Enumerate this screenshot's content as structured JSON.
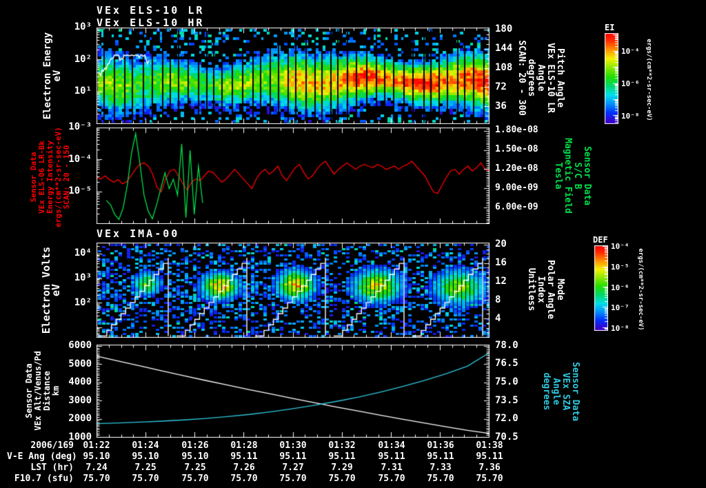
{
  "header": {
    "title_lr": "VEx ELS-10 LR",
    "title_hr": "VEx ELS-10 HR"
  },
  "colors": {
    "background": "#000000",
    "foreground": "#ffffff",
    "accent_red": "#ff0000",
    "accent_green": "#00e04a",
    "accent_cyan": "#2fc9de"
  },
  "panels": {
    "p1": {
      "left_label_lines": [
        "Electron Energy",
        "eV"
      ],
      "left_ticks": [
        {
          "label": "10³",
          "exp": 3
        },
        {
          "label": "10²",
          "exp": 2
        },
        {
          "label": "10¹",
          "exp": 1
        }
      ],
      "right_ticks": [
        {
          "label": "180",
          "value": 180
        },
        {
          "label": "144",
          "value": 144
        },
        {
          "label": "108",
          "value": 108
        },
        {
          "label": "72",
          "value": 72
        },
        {
          "label": "36",
          "value": 36
        }
      ],
      "right_label_lines": [
        "Pitch Angle",
        "VEx ELS-10 LR",
        "Angle",
        "degrees",
        "SCAN: 20 - 300"
      ],
      "colorbar": {
        "title": "EI",
        "units": "ergs/(cm**2-sr-sec-eV)",
        "ticks": [
          {
            "label": "10⁻⁴",
            "exp": -4
          },
          {
            "label": "10⁻⁶",
            "exp": -6
          },
          {
            "label": "10⁻⁸",
            "exp": -8
          }
        ],
        "scale_log10_top": -2.9,
        "scale_log10_bottom": -8.5
      }
    },
    "p2": {
      "left_label_lines": [
        "Sensor Data",
        "VEx ELS-06 LR-Bk",
        "Energy Intensity",
        "ergs/(cm**2-sr-sec-eV)",
        "SCAN: 20 - 150"
      ],
      "left_ticks": [
        {
          "label": "10⁻³",
          "exp": -3
        },
        {
          "label": "10⁻⁴",
          "exp": -4
        },
        {
          "label": "10⁻⁵",
          "exp": -5
        }
      ],
      "right_ticks": [
        {
          "label": "1.80e-08",
          "value": 18
        },
        {
          "label": "1.50e-08",
          "value": 15
        },
        {
          "label": "1.20e-08",
          "value": 12
        },
        {
          "label": "9.00e-09",
          "value": 9
        },
        {
          "label": "6.00e-09",
          "value": 6
        }
      ],
      "right_label_lines": [
        "Sensor Data",
        "S/C B",
        "Magnetic Field",
        "Tesla"
      ]
    },
    "p3": {
      "title": "VEx IMA-00",
      "left_label_lines": [
        "Electron Volts",
        "eV"
      ],
      "left_ticks": [
        {
          "label": "10⁴",
          "exp": 4
        },
        {
          "label": "10³",
          "exp": 3
        },
        {
          "label": "10²",
          "exp": 2
        }
      ],
      "right_ticks": [
        {
          "label": "20",
          "value": 20
        },
        {
          "label": "16",
          "value": 16
        },
        {
          "label": "12",
          "value": 12
        },
        {
          "label": "8",
          "value": 8
        },
        {
          "label": "4",
          "value": 4
        }
      ],
      "right_label_lines": [
        "Mode",
        "Polar Angle",
        "Index",
        "Unitless"
      ],
      "colorbar": {
        "title": "DEF",
        "units": "ergs/(cm**2-sr-sec-eV)",
        "ticks": [
          {
            "label": "10⁻⁴",
            "exp": -4
          },
          {
            "label": "10⁻⁵",
            "exp": -5
          },
          {
            "label": "10⁻⁶",
            "exp": -6
          },
          {
            "label": "10⁻⁷",
            "exp": -7
          },
          {
            "label": "10⁻⁸",
            "exp": -8
          }
        ],
        "scale_log10_top": -3.95,
        "scale_log10_bottom": -8.15
      }
    },
    "p4": {
      "left_label_lines": [
        "Sensor Data",
        "VEx Alt/Venus/Pd",
        "Distance",
        "km"
      ],
      "left_ticks": [
        {
          "label": "6000",
          "value": 6000
        },
        {
          "label": "5000",
          "value": 5000
        },
        {
          "label": "4000",
          "value": 4000
        },
        {
          "label": "3000",
          "value": 3000
        },
        {
          "label": "2000",
          "value": 2000
        },
        {
          "label": "1000",
          "value": 1000
        }
      ],
      "right_ticks": [
        {
          "label": "78.0",
          "value": 78
        },
        {
          "label": "76.5",
          "value": 76.5
        },
        {
          "label": "75.0",
          "value": 75
        },
        {
          "label": "73.5",
          "value": 73.5
        },
        {
          "label": "72.0",
          "value": 72
        },
        {
          "label": "70.5",
          "value": 70.5
        }
      ],
      "right_label_lines": [
        "Sensor Data",
        "VEx SZA",
        "Angle",
        "degrees"
      ]
    }
  },
  "bottom_axis": {
    "date_label": "2006/169",
    "row_labels": [
      "V-E Ang (deg)",
      "LST (hr)",
      "F10.7 (sfu)"
    ],
    "times": [
      "01:22",
      "01:24",
      "01:26",
      "01:28",
      "01:30",
      "01:32",
      "01:34",
      "01:36",
      "01:38"
    ],
    "rows": [
      [
        "95.10",
        "95.10",
        "95.10",
        "95.11",
        "95.11",
        "95.11",
        "95.11",
        "95.11",
        "95.11"
      ],
      [
        "7.24",
        "7.25",
        "7.25",
        "7.26",
        "7.27",
        "7.29",
        "7.31",
        "7.33",
        "7.36"
      ],
      [
        "75.70",
        "75.70",
        "75.70",
        "75.70",
        "75.70",
        "75.70",
        "75.70",
        "75.70",
        "75.70"
      ]
    ]
  },
  "chart_data": [
    {
      "type": "heatmap",
      "name": "els_electron_spectrogram",
      "title": "VEx ELS-10 LR / VEx ELS-10 HR",
      "xlabel": "UT 01:22 - 01:38 (2006/169)",
      "ylabel": "Electron Energy eV",
      "y_left_log10_lim": [
        0,
        3
      ],
      "y_right_label": "Pitch Angle degrees SCAN: 20 - 300",
      "y_right_lim": [
        4,
        184
      ],
      "zlabel": "EI ergs/(cm**2-sr-sec-eV)",
      "z_log10_lim": [
        -8.5,
        -2.9
      ],
      "render": {
        "seed": 7,
        "cell": [
          5,
          4
        ],
        "band_center": 0.55,
        "band_width": 0.155,
        "base_intensity": 0.56,
        "right_boost": 0.34,
        "boost_start": 0.5,
        "gap_min": 10,
        "gap_var": 6,
        "speck_prob": 0.2,
        "trace": {
          "x0": 4,
          "x1": 76,
          "y_mid": 66,
          "amp": 26
        }
      }
    },
    {
      "type": "line",
      "name": "els_intensity_and_magnetic_field",
      "y_left": {
        "label": "Energy Intensity ergs/(cm**2-sr-sec-eV)",
        "scale": "log",
        "lim_log10": [
          -6,
          -3
        ]
      },
      "y_right": {
        "label": "S/C B Magnetic Field Tesla",
        "lim_e9": [
          3.5,
          18.55
        ]
      },
      "series": [
        {
          "name": "VEx ELS-06 LR-Bk Energy Intensity",
          "color": "#ff0000",
          "axis": "left",
          "x_start": 0,
          "x_end": 1,
          "log10_values": [
            -4.55,
            -4.6,
            -4.5,
            -4.62,
            -4.7,
            -4.62,
            -4.75,
            -4.68,
            -4.5,
            -4.3,
            -4.15,
            -4.1,
            -4.2,
            -4.45,
            -4.85,
            -5.0,
            -4.6,
            -4.35,
            -4.3,
            -4.5,
            -4.75,
            -4.95,
            -4.7,
            -4.6,
            -4.65,
            -4.5,
            -4.35,
            -4.4,
            -4.55,
            -4.7,
            -4.6,
            -4.45,
            -4.3,
            -4.45,
            -4.6,
            -4.75,
            -4.9,
            -4.6,
            -4.4,
            -4.3,
            -4.45,
            -4.35,
            -4.2,
            -4.5,
            -4.65,
            -4.45,
            -4.25,
            -4.15,
            -4.4,
            -4.6,
            -4.5,
            -4.3,
            -4.15,
            -4.05,
            -4.25,
            -4.45,
            -4.3,
            -4.2,
            -4.1,
            -4.2,
            -4.3,
            -4.2,
            -4.15,
            -4.2,
            -4.25,
            -4.15,
            -4.2,
            -4.3,
            -4.25,
            -4.2,
            -4.3,
            -4.2,
            -4.15,
            -4.05,
            -4.2,
            -4.35,
            -4.5,
            -4.75,
            -5.0,
            -5.05,
            -4.8,
            -4.55,
            -4.35,
            -4.3,
            -4.45,
            -4.3,
            -4.2,
            -4.35,
            -4.25,
            -4.1,
            -4.3,
            -4.35
          ]
        },
        {
          "name": "S/C B Magnetic Field",
          "color": "#00e04a",
          "axis": "right",
          "x_start": 0.025,
          "x_end": 0.27,
          "values_tesla_e9": [
            7.2,
            6.5,
            5.0,
            4.2,
            6.0,
            9.5,
            14.5,
            17.6,
            13.0,
            8.0,
            5.5,
            4.3,
            6.5,
            9.0,
            11.5,
            9.0,
            10.5,
            8.0,
            16.0,
            4.5,
            15.0,
            5.0,
            12.5,
            6.8
          ]
        }
      ]
    },
    {
      "type": "heatmap",
      "name": "ima_ion_spectrogram",
      "title": "VEx IMA-00",
      "ylabel": "Electron Volts eV",
      "y_left_log10_lim": [
        0.6,
        4.45
      ],
      "y_right_label": "Mode Polar Angle Index Unitless",
      "y_right_lim": [
        0,
        20.44
      ],
      "zlabel": "DEF ergs/(cm**2-sr-sec-eV)",
      "z_log10_lim": [
        -8.15,
        -3.95
      ],
      "render": {
        "seed": 11,
        "cell": [
          6,
          3
        ],
        "cycles": 5,
        "cycle_width": 114,
        "noise_base": 0.32,
        "noise_mid_boost": 0.2,
        "stair": {
          "x_start": 8,
          "x_end": 104,
          "y_bottom": 135.5,
          "y_top": 22,
          "steps": 14
        },
        "blobs": [
          {
            "cx": 0.62,
            "cy": 58,
            "rx": 18,
            "ry": 16,
            "peak": 0.55
          },
          {
            "cx": 0.55,
            "cy": 62,
            "rx": 26,
            "ry": 18,
            "peak": 0.78
          },
          {
            "cx": 0.52,
            "cy": 60,
            "rx": 26,
            "ry": 20,
            "peak": 0.8
          },
          {
            "cx": 0.55,
            "cy": 62,
            "rx": 34,
            "ry": 22,
            "peak": 0.72
          },
          {
            "cx": 0.6,
            "cy": 64,
            "rx": 36,
            "ry": 24,
            "peak": 0.62
          }
        ]
      }
    },
    {
      "type": "line",
      "name": "altitude_and_sza",
      "y_left": {
        "label": "VEx Alt/Venus/Pd Distance km",
        "lim": [
          1000,
          6075
        ]
      },
      "y_right": {
        "label": "VEx SZA Angle degrees",
        "lim": [
          70.5,
          78.1
        ]
      },
      "series": [
        {
          "name": "VEx Alt/Venus/Pd Distance",
          "color": "#ffffff",
          "axis": "left",
          "values": [
            5450,
            5180,
            4910,
            4640,
            4380,
            4120,
            3870,
            3620,
            3380,
            3140,
            2900,
            2670,
            2450,
            2230,
            2010,
            1800,
            1600,
            1400,
            1230
          ]
        },
        {
          "name": "VEx SZA",
          "color": "#2fc9de",
          "axis": "right",
          "values": [
            71.65,
            71.7,
            71.77,
            71.85,
            71.95,
            72.07,
            72.22,
            72.4,
            72.62,
            72.87,
            73.15,
            73.47,
            73.82,
            74.22,
            74.67,
            75.17,
            75.72,
            76.35,
            77.45
          ]
        }
      ]
    }
  ]
}
